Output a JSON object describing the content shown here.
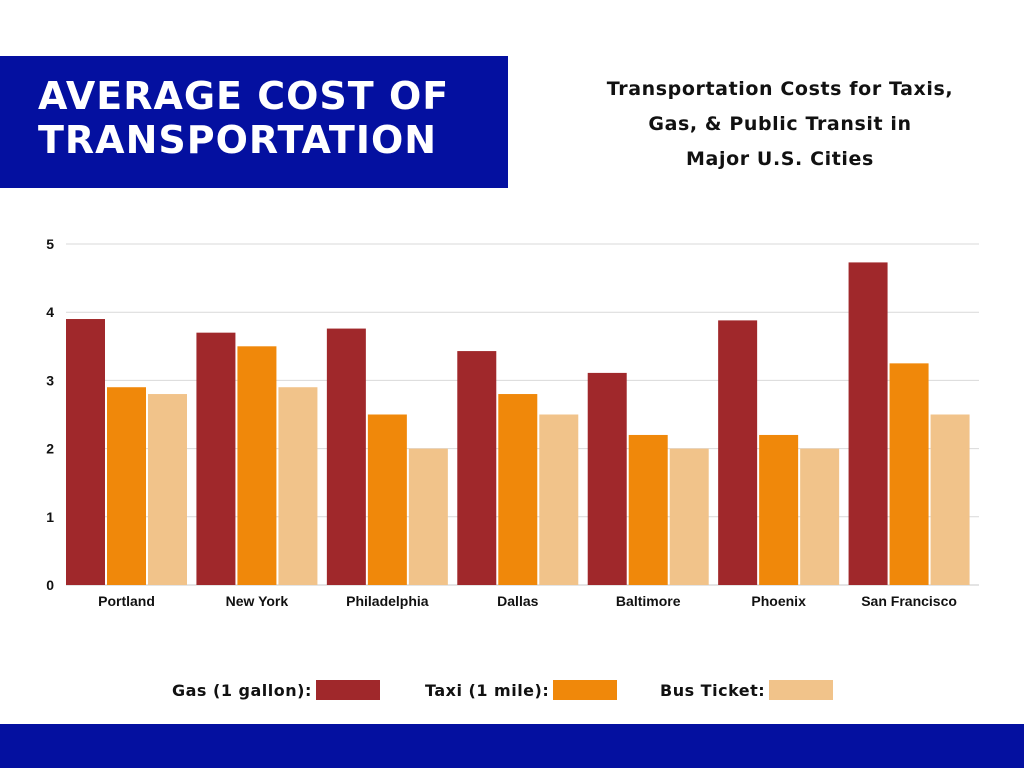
{
  "header": {
    "title_lines": [
      "AVERAGE COST OF",
      "TRANSPORTATION"
    ],
    "subtitle_lines": [
      "Transportation Costs for Taxis,",
      "Gas, & Public Transit in",
      "Major U.S. Cities"
    ]
  },
  "colors": {
    "banner": "#0410A0",
    "gas": "#A0282B",
    "taxi": "#F0880A",
    "bus": "#F1C38A",
    "grid": "#d9d9d9",
    "axis": "#c8c8c8"
  },
  "legend": {
    "gas_label": "Gas (1 gallon):",
    "taxi_label": "Taxi (1 mile):",
    "bus_label": "Bus Ticket:"
  },
  "chart_data": {
    "type": "bar",
    "categories": [
      "Portland",
      "New York",
      "Philadelphia",
      "Dallas",
      "Baltimore",
      "Phoenix",
      "San Francisco"
    ],
    "series": [
      {
        "name": "Gas (1 gallon):",
        "color": "#A0282B",
        "values": [
          3.9,
          3.7,
          3.76,
          3.43,
          3.11,
          3.88,
          4.73
        ]
      },
      {
        "name": "Taxi (1 mile):",
        "color": "#F0880A",
        "values": [
          2.9,
          3.5,
          2.5,
          2.8,
          2.2,
          2.2,
          3.25
        ]
      },
      {
        "name": "Bus Ticket:",
        "color": "#F1C38A",
        "values": [
          2.8,
          2.9,
          2.0,
          2.5,
          2.0,
          2.0,
          2.5
        ]
      }
    ],
    "yticks": [
      "0",
      "1",
      "2",
      "3",
      "4",
      "5"
    ],
    "ylim": [
      0,
      5
    ],
    "grid": true,
    "legend_position": "bottom"
  }
}
